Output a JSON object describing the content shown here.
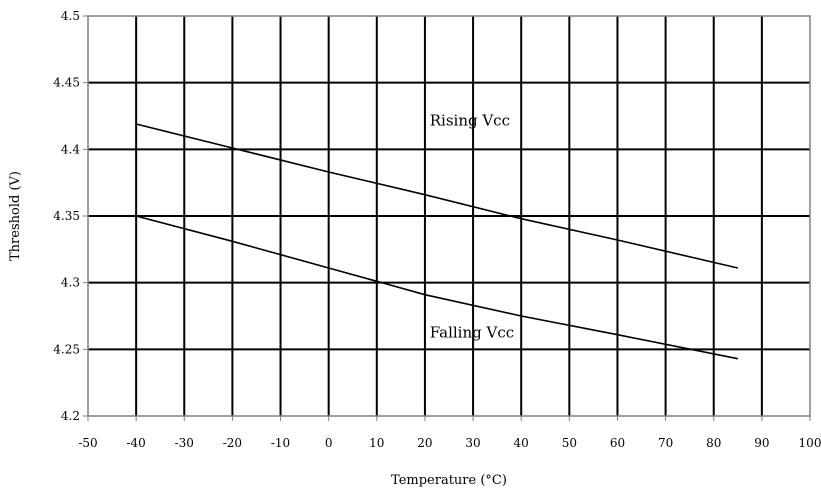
{
  "chart_data": {
    "type": "line",
    "xlabel": "Temperature (°C)",
    "ylabel": "Threshold (V)",
    "xlim": [
      -50,
      100
    ],
    "ylim": [
      4.2,
      4.5
    ],
    "x_ticks": [
      -50,
      -40,
      -30,
      -20,
      -10,
      0,
      10,
      20,
      30,
      40,
      50,
      60,
      70,
      80,
      90,
      100
    ],
    "y_ticks": [
      4.2,
      4.25,
      4.3,
      4.35,
      4.4,
      4.45,
      4.5
    ],
    "x_tick_labels": [
      "-50",
      "-40",
      "-30",
      "-20",
      "-10",
      "0",
      "10",
      "20",
      "30",
      "40",
      "50",
      "60",
      "70",
      "80",
      "90",
      "100"
    ],
    "y_tick_labels": [
      "4.2",
      "4.25",
      "4.3",
      "4.35",
      "4.4",
      "4.45",
      "4.5"
    ],
    "grid": true,
    "series": [
      {
        "label": "Rising Vcc",
        "color": "#000000",
        "x": [
          -40,
          -20,
          0,
          20,
          40,
          60,
          85
        ],
        "y": [
          4.419,
          4.401,
          4.383,
          4.366,
          4.348,
          4.332,
          4.311
        ]
      },
      {
        "label": "Falling Vcc",
        "color": "#000000",
        "x": [
          -40,
          -20,
          0,
          10,
          20,
          40,
          60,
          85
        ],
        "y": [
          4.35,
          4.331,
          4.311,
          4.301,
          4.291,
          4.275,
          4.261,
          4.243
        ]
      }
    ],
    "annotations": [
      {
        "text": "Rising Vcc",
        "x": 21,
        "y": 4.418
      },
      {
        "text": "Falling Vcc",
        "x": 21,
        "y": 4.259
      }
    ]
  }
}
